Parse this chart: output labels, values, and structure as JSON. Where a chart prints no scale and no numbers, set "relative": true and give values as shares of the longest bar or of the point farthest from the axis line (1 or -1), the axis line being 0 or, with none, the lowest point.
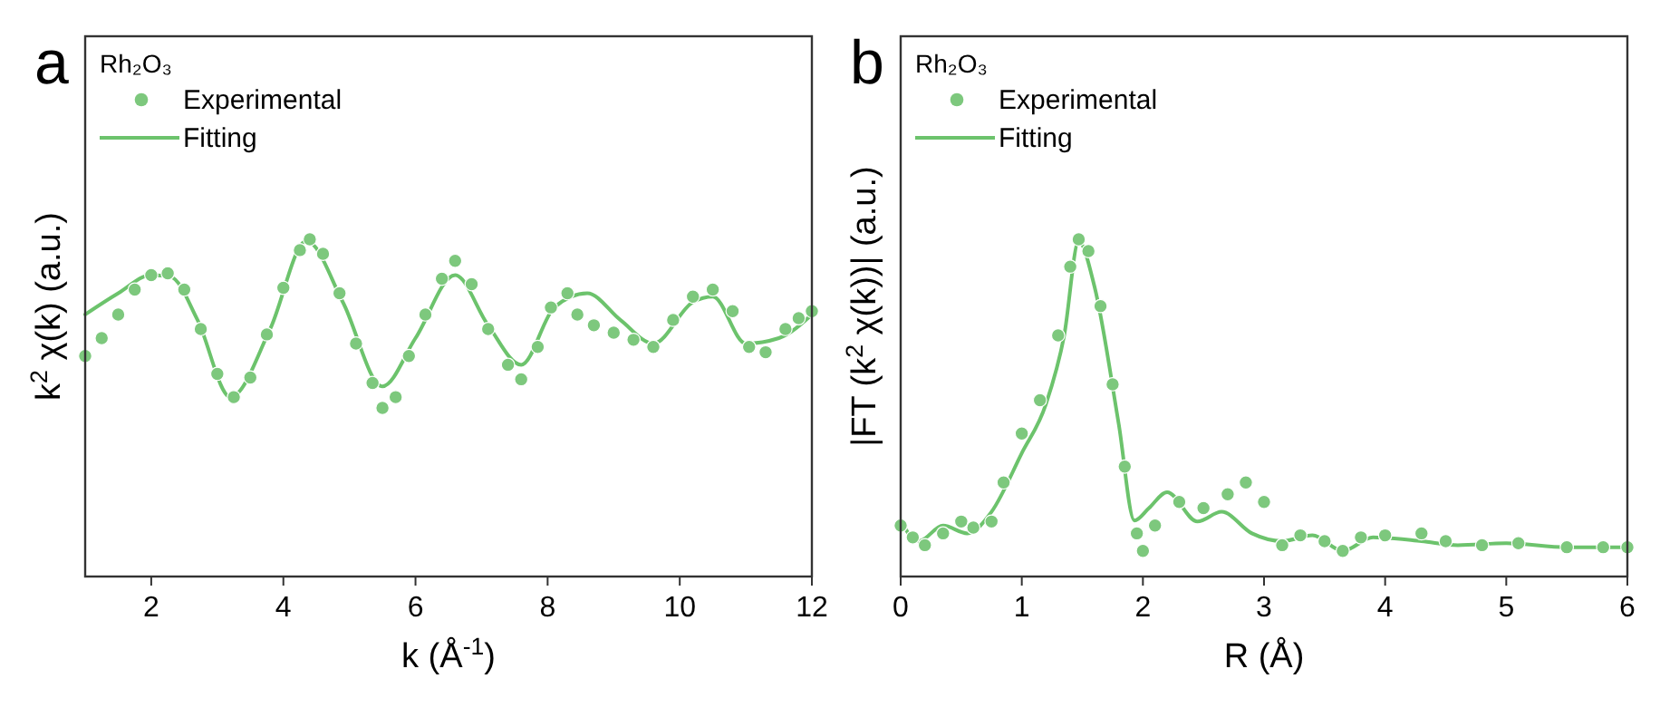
{
  "chart_data": [
    {
      "type": "line",
      "title": "a",
      "xlabel": "k (Å$^{-1}$)",
      "ylabel": "k$^{2}$ χ(k) (a.u.)",
      "relative": true,
      "xlim": [
        1,
        12
      ],
      "xticks": [
        2,
        4,
        6,
        8,
        10,
        12
      ],
      "legend": "top left",
      "legend_title": "Rh₂O₃",
      "grid": false,
      "series": [
        {
          "name": "Experimental",
          "type": "scatter",
          "marker": "circle",
          "color": "#7dc87d",
          "x": [
            1.0,
            1.25,
            1.5,
            1.75,
            2.0,
            2.25,
            2.5,
            2.75,
            3.0,
            3.25,
            3.5,
            3.75,
            4.0,
            4.25,
            4.4,
            4.6,
            4.85,
            5.1,
            5.35,
            5.5,
            5.7,
            5.9,
            6.15,
            6.4,
            6.6,
            6.85,
            7.1,
            7.4,
            7.6,
            7.85,
            8.05,
            8.3,
            8.45,
            8.7,
            9.0,
            9.3,
            9.6,
            9.9,
            10.2,
            10.5,
            10.8,
            11.05,
            11.3,
            11.6,
            11.8,
            12.0
          ],
          "values": [
            0.654,
            0.707,
            0.777,
            0.851,
            0.894,
            0.899,
            0.851,
            0.734,
            0.601,
            0.532,
            0.59,
            0.718,
            0.856,
            0.968,
            1,
            0.957,
            0.84,
            0.691,
            0.574,
            0.5,
            0.532,
            0.654,
            0.777,
            0.883,
            0.936,
            0.867,
            0.734,
            0.628,
            0.585,
            0.681,
            0.798,
            0.84,
            0.777,
            0.745,
            0.723,
            0.702,
            0.681,
            0.761,
            0.83,
            0.851,
            0.787,
            0.681,
            0.665,
            0.734,
            0.766,
            0.787
          ]
        },
        {
          "name": "Fitting",
          "type": "line",
          "color": "#6cc36c",
          "x": [
            1.0,
            1.5,
            2.0,
            2.3,
            2.7,
            3.2,
            3.8,
            4.35,
            4.9,
            5.5,
            6.0,
            6.6,
            7.1,
            7.6,
            8.1,
            8.6,
            9.1,
            9.6,
            10.2,
            10.5,
            11.0,
            11.5,
            12.0
          ],
          "values": [
            0.777,
            0.84,
            0.894,
            0.888,
            0.761,
            0.532,
            0.734,
            0.995,
            0.814,
            0.564,
            0.707,
            0.894,
            0.745,
            0.628,
            0.798,
            0.84,
            0.761,
            0.691,
            0.814,
            0.83,
            0.691,
            0.707,
            0.777
          ]
        }
      ]
    },
    {
      "type": "line",
      "title": "b",
      "xlabel": "R (Å)",
      "ylabel": "|FT (k$^{2}$ χ(k))| (a.u.)",
      "relative": true,
      "xlim": [
        0,
        6
      ],
      "xticks": [
        0,
        1,
        2,
        3,
        4,
        5,
        6
      ],
      "legend": "top left",
      "legend_title": "Rh₂O₃",
      "grid": false,
      "series": [
        {
          "name": "Experimental",
          "type": "scatter",
          "marker": "circle",
          "color": "#7dc87d",
          "x": [
            0,
            0.1,
            0.2,
            0.35,
            0.5,
            0.6,
            0.75,
            0.85,
            1.0,
            1.15,
            1.3,
            1.4,
            1.47,
            1.55,
            1.65,
            1.75,
            1.85,
            1.95,
            2.0,
            2.1,
            2.3,
            2.5,
            2.7,
            2.85,
            3.0,
            3.15,
            3.3,
            3.5,
            3.65,
            3.8,
            4.0,
            4.3,
            4.5,
            4.8,
            5.1,
            5.5,
            5.8,
            6.0
          ],
          "values": [
            0.151,
            0.116,
            0.093,
            0.128,
            0.163,
            0.145,
            0.163,
            0.279,
            0.424,
            0.523,
            0.715,
            0.919,
            1,
            0.965,
            0.802,
            0.57,
            0.326,
            0.128,
            0.076,
            0.151,
            0.221,
            0.203,
            0.244,
            0.279,
            0.221,
            0.093,
            0.122,
            0.105,
            0.076,
            0.116,
            0.122,
            0.128,
            0.105,
            0.093,
            0.099,
            0.087,
            0.087,
            0.087
          ]
        },
        {
          "name": "Fitting",
          "type": "line",
          "color": "#6cc36c",
          "x": [
            0,
            0.15,
            0.35,
            0.55,
            0.75,
            1.0,
            1.2,
            1.35,
            1.47,
            1.6,
            1.8,
            1.93,
            2.05,
            2.2,
            2.45,
            2.65,
            2.9,
            3.15,
            3.4,
            3.65,
            3.9,
            4.3,
            4.6,
            5.0,
            5.5,
            6.0
          ],
          "values": [
            0.163,
            0.105,
            0.151,
            0.128,
            0.192,
            0.366,
            0.512,
            0.715,
            0.994,
            0.86,
            0.453,
            0.166,
            0.203,
            0.25,
            0.163,
            0.192,
            0.128,
            0.105,
            0.122,
            0.076,
            0.116,
            0.105,
            0.093,
            0.099,
            0.087,
            0.087
          ]
        }
      ]
    }
  ]
}
